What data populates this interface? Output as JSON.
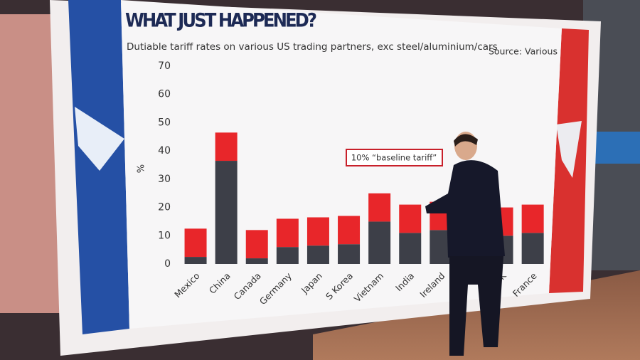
{
  "chart_data": {
    "type": "stacked-bar",
    "title": "WHAT JUST HAPPENED?",
    "subtitle": "Dutiable tariff rates on various US trading partners, exc steel/aluminium/cars",
    "source": "Source: Various",
    "y_label": "%",
    "annotation": "10% “baseline tariff”",
    "categories": [
      "Mexico",
      "China",
      "Canada",
      "Germany",
      "Japan",
      "S Korea",
      "Vietnam",
      "India",
      "Ireland",
      null,
      "UK",
      "France"
    ],
    "series": [
      {
        "color": "#3d3f48",
        "values": [
          2.5,
          36.5,
          2,
          6,
          6.5,
          7,
          15,
          11,
          12,
          null,
          10,
          11
        ]
      },
      {
        "color": "#e8262a",
        "values": [
          10,
          10,
          10,
          10,
          10,
          10,
          10,
          10,
          10,
          null,
          10,
          10
        ]
      }
    ],
    "ylim": [
      0,
      70
    ],
    "yticks": [
      0,
      10,
      20,
      30,
      40,
      50,
      60,
      70
    ]
  }
}
